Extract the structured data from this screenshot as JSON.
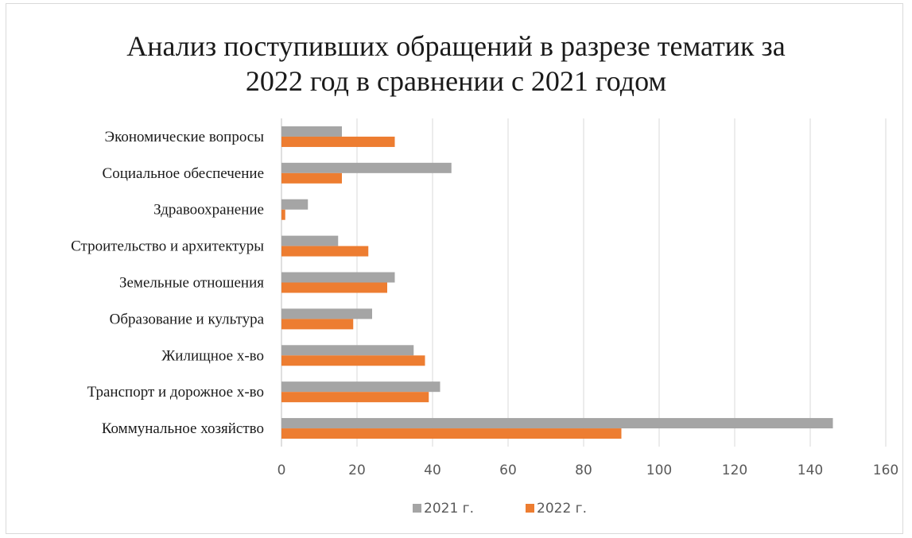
{
  "chart_data": {
    "type": "bar",
    "orientation": "horizontal",
    "title_lines": [
      "Анализ поступивших обращений в разрезе тематик за",
      "2022 год в сравнении с 2021 годом"
    ],
    "categories": [
      "Экономические вопросы",
      "Социальное обеспечение",
      "Здравоохранение",
      "Строительство и архитектуры",
      "Земельные отношения",
      "Образование и культура",
      "Жилищное х-во",
      "Транспорт и дорожное х-во",
      "Коммунальное хозяйство"
    ],
    "series": [
      {
        "name": "2021 г.",
        "color": "#a5a5a5",
        "values": [
          16,
          45,
          7,
          15,
          30,
          24,
          35,
          42,
          146
        ]
      },
      {
        "name": "2022 г.",
        "color": "#ed7d31",
        "values": [
          30,
          16,
          1,
          23,
          28,
          19,
          38,
          39,
          90
        ]
      }
    ],
    "xlim": [
      0,
      160
    ],
    "xticks": [
      0,
      20,
      40,
      60,
      80,
      100,
      120,
      140,
      160
    ],
    "grid": true,
    "legend_position": "bottom"
  }
}
